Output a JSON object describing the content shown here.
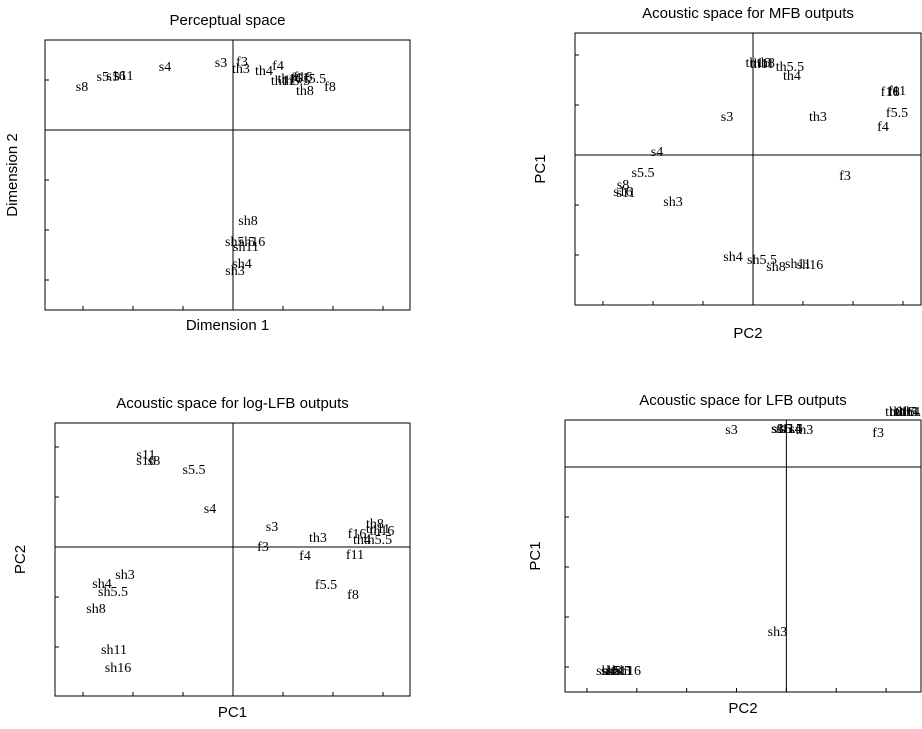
{
  "chart_data": [
    {
      "type": "scatter",
      "title": "Perceptual space",
      "xlabel": "Dimension 1",
      "ylabel": "Dimension 2",
      "xlim": [
        -1.88,
        1.77
      ],
      "ylim": [
        -1.8,
        0.9
      ],
      "xticks": [
        -1.5,
        -1,
        -0.5,
        0,
        0.5,
        1,
        1.5
      ],
      "yticks": [
        -1.5,
        -1,
        -0.5,
        0,
        0.5
      ],
      "point_labels": [
        "s8",
        "s5.5",
        "s16",
        "s11",
        "s4",
        "s3",
        "f3",
        "th3",
        "th4",
        "f4",
        "th11",
        "th16",
        "th5.5",
        "f16",
        "f5.5",
        "f11",
        "th8",
        "f8",
        "sh8",
        "sh5.5",
        "sh16",
        "sh11",
        "sh4",
        "sh3"
      ],
      "x": [
        -1.51,
        -1.25,
        -1.17,
        -1.09,
        -0.68,
        -0.12,
        0.09,
        0.08,
        0.31,
        0.45,
        0.5,
        0.57,
        0.63,
        0.7,
        0.82,
        0.67,
        0.72,
        0.97,
        0.15,
        0.07,
        0.19,
        0.13,
        0.09,
        0.02
      ],
      "values": [
        0.42,
        0.52,
        0.53,
        0.53,
        0.62,
        0.66,
        0.67,
        0.6,
        0.58,
        0.63,
        0.48,
        0.5,
        0.48,
        0.52,
        0.5,
        0.51,
        0.38,
        0.42,
        -0.92,
        -1.13,
        -1.13,
        -1.18,
        -1.35,
        -1.42
      ]
    },
    {
      "type": "scatter",
      "title": "Acoustic space for MFB outputs",
      "xlabel": "PC2",
      "ylabel": "PC1",
      "xlim": [
        -1.78,
        1.68
      ],
      "ylim": [
        -1.5,
        1.22
      ],
      "xticks": [
        -1.5,
        -1,
        -0.5,
        0,
        0.5,
        1,
        1.5
      ],
      "yticks": [
        -1,
        -0.5,
        0,
        0.5,
        1
      ],
      "point_labels": [
        "th16",
        "th11",
        "th8",
        "th5.5",
        "th4",
        "f16",
        "f8",
        "f11",
        "f5.5",
        "f4",
        "s3",
        "th3",
        "s4",
        "s5.5",
        "s8",
        "s16",
        "s11",
        "f3",
        "sh3",
        "sh4",
        "sh5.5",
        "sh8",
        "sh11",
        "sh16"
      ],
      "x": [
        0.05,
        0.09,
        0.13,
        0.37,
        0.39,
        1.37,
        1.41,
        1.44,
        1.44,
        1.3,
        -0.26,
        0.65,
        -0.96,
        -1.1,
        -1.3,
        -1.3,
        -1.27,
        0.92,
        -0.8,
        -0.2,
        0.09,
        0.23,
        0.45,
        0.57
      ],
      "values": [
        0.91,
        0.9,
        0.91,
        0.87,
        0.78,
        0.62,
        0.62,
        0.63,
        0.41,
        0.27,
        0.37,
        0.37,
        0.02,
        -0.19,
        -0.31,
        -0.38,
        -0.39,
        -0.22,
        -0.48,
        -1.03,
        -1.06,
        -1.13,
        -1.1,
        -1.11
      ]
    },
    {
      "type": "scatter",
      "title": "Acoustic space for log-LFB outputs",
      "xlabel": "PC1",
      "ylabel": "PC2",
      "xlim": [
        -1.78,
        1.77
      ],
      "ylim": [
        -1.49,
        1.24
      ],
      "xticks": [
        -1.5,
        -1,
        -0.5,
        0,
        0.5,
        1,
        1.5
      ],
      "yticks": [
        -1,
        -0.5,
        0,
        0.5,
        1
      ],
      "point_labels": [
        "s11",
        "s16",
        "s8",
        "s5.5",
        "s4",
        "s3",
        "f3",
        "th3",
        "f4",
        "f16",
        "th8",
        "th16",
        "th11",
        "th4",
        "th5.5",
        "f11",
        "f5.5",
        "f8",
        "sh3",
        "sh4",
        "sh5.5",
        "sh8",
        "sh11",
        "sh16"
      ],
      "x": [
        -0.87,
        -0.87,
        -0.79,
        -0.39,
        -0.23,
        0.39,
        0.3,
        0.85,
        0.72,
        1.24,
        1.42,
        1.49,
        1.45,
        1.29,
        1.45,
        1.22,
        0.93,
        1.2,
        -1.08,
        -1.31,
        -1.2,
        -1.37,
        -1.19,
        -1.15
      ],
      "values": [
        0.91,
        0.85,
        0.85,
        0.76,
        0.37,
        0.19,
        -0.01,
        0.08,
        -0.1,
        0.12,
        0.22,
        0.15,
        0.17,
        0.06,
        0.06,
        -0.09,
        -0.39,
        -0.49,
        -0.29,
        -0.38,
        -0.46,
        -0.63,
        -1.04,
        -1.22
      ]
    },
    {
      "type": "scatter",
      "title": "Acoustic space for LFB outputs",
      "xlabel": "PC2",
      "ylabel": "PC1",
      "xlim": [
        -2.22,
        1.35
      ],
      "ylim": [
        -2.25,
        0.47
      ],
      "xticks": [
        -2,
        -1.5,
        -1,
        -0.5,
        0,
        0.5,
        1
      ],
      "yticks": [
        -2,
        -1.5,
        -1,
        -0.5,
        0
      ],
      "point_labels": [
        "s3",
        "s8",
        "s16",
        "s11",
        "s5.5",
        "s4",
        "th3",
        "f3",
        "th8",
        "th16",
        "th11",
        "th4",
        "th5.5",
        "sh3",
        "sh4",
        "sh5.5",
        "sh8",
        "sh11",
        "sh16"
      ],
      "x": [
        -0.55,
        -0.09,
        -0.05,
        -0.01,
        0.05,
        0.09,
        0.18,
        0.92,
        1.08,
        1.16,
        1.21,
        1.25,
        1.28,
        -0.09,
        -1.81,
        -1.71,
        -1.75,
        -1.67,
        -1.59
      ],
      "values": [
        0.36,
        0.37,
        0.37,
        0.37,
        0.37,
        0.37,
        0.36,
        0.33,
        0.54,
        0.54,
        0.54,
        0.54,
        0.54,
        -1.66,
        -2.05,
        -2.05,
        -2.05,
        -2.05,
        -2.05
      ]
    }
  ]
}
